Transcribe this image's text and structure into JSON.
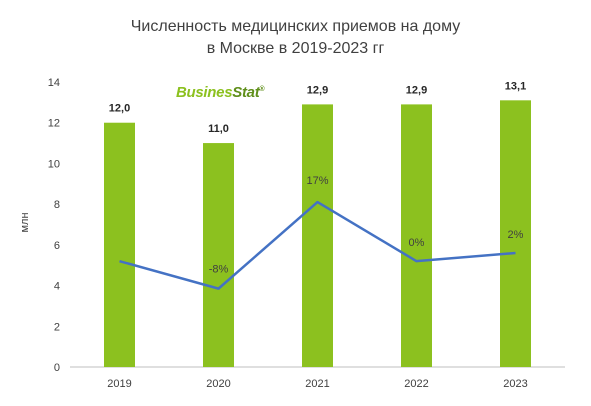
{
  "title_lines": [
    "Численность медицинских приемов на дому",
    "в Москве в 2019-2023 гг"
  ],
  "logo": {
    "part1": "Busines",
    "part2": "Stat",
    "mark": "®"
  },
  "colors": {
    "bar": "#8cc11f",
    "line": "#4472c4",
    "axis": "#bfbfbf",
    "text": "#404040"
  },
  "chart_data": {
    "type": "bar",
    "categories": [
      "2019",
      "2020",
      "2021",
      "2022",
      "2023"
    ],
    "ylabel": "млн",
    "ylim": [
      0,
      14
    ],
    "yticks": [
      0,
      2,
      4,
      6,
      8,
      10,
      12,
      14
    ],
    "grid": false,
    "series": [
      {
        "values": [
          12.0,
          11.0,
          12.9,
          12.9,
          13.1
        ],
        "labels": [
          "12,0",
          "11,0",
          "12,9",
          "12,9",
          "13,1"
        ]
      }
    ],
    "line_series": {
      "values": [
        5.2,
        3.85,
        8.1,
        5.2,
        5.6
      ],
      "labels": [
        "",
        "-8%",
        "17%",
        "0%",
        "2%"
      ]
    }
  }
}
